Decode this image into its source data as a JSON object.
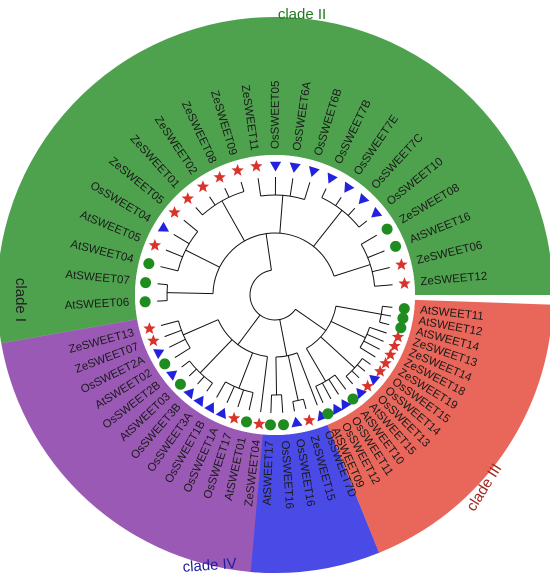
{
  "figure": {
    "clades": [
      {
        "id": "clade-ii",
        "label": "clade II",
        "color": "#4ea24e",
        "text_color": "#1f7a1f",
        "leaves": [
          "ZeSWEET12",
          "ZeSWEET06",
          "AtSWEET16",
          "ZeSWEET08",
          "OsSWEET10",
          "OsSWEET7C",
          "OsSWEET7E",
          "OsSWEET7B",
          "OsSWEET6B",
          "OsSWEET6A",
          "OsSWEET05",
          "ZeSWEET11",
          "ZeSWEET09",
          "ZeSWEET08",
          "ZeSWEET02",
          "ZeSWEET01",
          "ZeSWEET05",
          "OsSWEET04",
          "AtSWEET05",
          "AtSWEET04",
          "AtSWEET07",
          "AtSWEET06"
        ]
      },
      {
        "id": "clade-i",
        "label": "clade I",
        "color": "#9b59b6",
        "text_color": "#222222",
        "leaves": [
          "ZeSWEET13",
          "ZeSWEET07",
          "OsSWEET2A",
          "AtSWEET02",
          "OsSWEET2B",
          "AtSWEET03",
          "OsSWEET3B",
          "OsSWEET3A",
          "OsSWEET1B",
          "OsSWEET1A",
          "OsSWEET17",
          "AtSWEET01",
          "ZeSWEET04"
        ]
      },
      {
        "id": "clade-iv",
        "label": "clade IV",
        "color": "#4a4ae6",
        "text_color": "#1f1f9f",
        "leaves": [
          "AtSWEET17",
          "OsSWEET16",
          "OsSWEET16",
          "ZeSWEET15",
          "OsSWEET7D"
        ]
      },
      {
        "id": "clade-iii",
        "label": "clade III",
        "color": "#e8665a",
        "text_color": "#a0281f",
        "leaves": [
          "AtSWEET09",
          "OsSWEET12",
          "OsSWEET11",
          "AtSWEET10",
          "AtSWEET15",
          "OsSWEET13",
          "OsSWEET14",
          "OsSWEET15",
          "ZeSWEET19",
          "ZeSWEET18",
          "ZeSWEET14",
          "ZeSWEET13",
          "AtSWEET14",
          "AtSWEET12",
          "AtSWEET11"
        ]
      }
    ],
    "marker_colors": {
      "star": "#d9342b",
      "circle": "#1e8c1e",
      "triangle": "#2222dd"
    }
  }
}
